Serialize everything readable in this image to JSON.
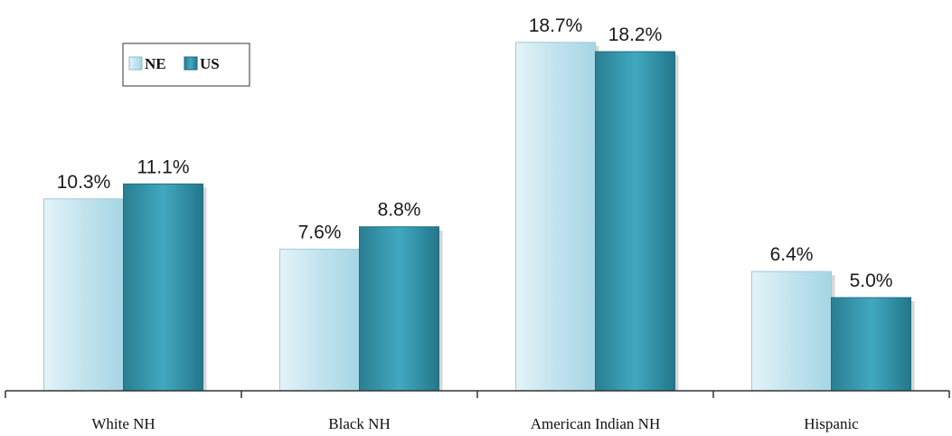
{
  "chart_data": {
    "type": "bar",
    "categories": [
      "White NH",
      "Black NH",
      "American Indian NH",
      "Hispanic"
    ],
    "series": [
      {
        "name": "NE",
        "values": [
          10.3,
          7.6,
          18.7,
          6.4
        ],
        "labels": [
          "10.3%",
          "7.6%",
          "18.7%",
          "6.4%"
        ]
      },
      {
        "name": "US",
        "values": [
          11.1,
          8.8,
          18.2,
          5.0
        ],
        "labels": [
          "11.1%",
          "8.8%",
          "18.2%",
          "5.0%"
        ]
      }
    ],
    "title": "",
    "xlabel": "",
    "ylabel": "",
    "ylim": [
      0,
      20
    ],
    "grid": false,
    "legend_position": "top-left",
    "colors": {
      "NE": "#bfe3ee",
      "US": "#2e8fa5"
    }
  }
}
